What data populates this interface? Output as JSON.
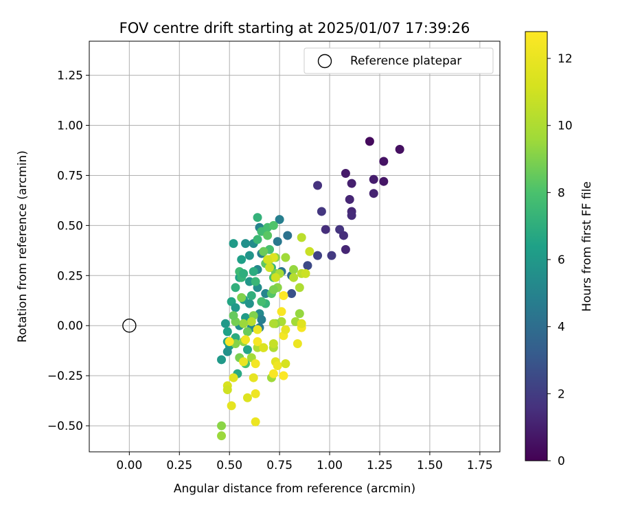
{
  "chart_data": {
    "type": "scatter",
    "title": "FOV centre drift starting at 2025/01/07 17:39:26",
    "xlabel": "Angular distance from reference (arcmin)",
    "ylabel": "Rotation from reference (arcmin)",
    "xlim": [
      -0.2,
      1.85
    ],
    "ylim": [
      -0.63,
      1.42
    ],
    "x_ticks": [
      0.0,
      0.25,
      0.5,
      0.75,
      1.0,
      1.25,
      1.5,
      1.75
    ],
    "x_tick_labels": [
      "0.00",
      "0.25",
      "0.50",
      "0.75",
      "1.00",
      "1.25",
      "1.50",
      "1.75"
    ],
    "y_ticks": [
      -0.5,
      -0.25,
      0.0,
      0.25,
      0.5,
      0.75,
      1.0,
      1.25
    ],
    "y_tick_labels": [
      "−0.50",
      "−0.25",
      "0.00",
      "0.25",
      "0.50",
      "0.75",
      "1.00",
      "1.25"
    ],
    "grid": true,
    "legend": {
      "position": "top-right",
      "entries": [
        "Reference platepar"
      ]
    },
    "reference_point": {
      "x": 0.0,
      "y": 0.0,
      "label": "Reference platepar"
    },
    "colorbar": {
      "label": "Hours from first FF file",
      "colormap": "viridis",
      "range": [
        0,
        12.8
      ],
      "ticks": [
        0,
        2,
        4,
        6,
        8,
        10,
        12
      ],
      "tick_labels": [
        "0",
        "2",
        "4",
        "6",
        "8",
        "10",
        "12"
      ]
    },
    "points": [
      {
        "x": 1.2,
        "y": 0.92,
        "c": 0.3
      },
      {
        "x": 1.35,
        "y": 0.88,
        "c": 0.5
      },
      {
        "x": 1.27,
        "y": 0.82,
        "c": 0.6
      },
      {
        "x": 1.08,
        "y": 0.76,
        "c": 0.8
      },
      {
        "x": 1.22,
        "y": 0.73,
        "c": 0.9
      },
      {
        "x": 1.27,
        "y": 0.72,
        "c": 0.7
      },
      {
        "x": 1.11,
        "y": 0.71,
        "c": 1.0
      },
      {
        "x": 0.94,
        "y": 0.7,
        "c": 1.6
      },
      {
        "x": 1.22,
        "y": 0.66,
        "c": 1.1
      },
      {
        "x": 1.1,
        "y": 0.63,
        "c": 1.2
      },
      {
        "x": 1.11,
        "y": 0.57,
        "c": 1.3
      },
      {
        "x": 0.96,
        "y": 0.57,
        "c": 1.8
      },
      {
        "x": 1.11,
        "y": 0.55,
        "c": 1.4
      },
      {
        "x": 0.98,
        "y": 0.48,
        "c": 1.5
      },
      {
        "x": 1.05,
        "y": 0.48,
        "c": 1.7
      },
      {
        "x": 1.07,
        "y": 0.45,
        "c": 1.5
      },
      {
        "x": 1.08,
        "y": 0.38,
        "c": 1.2
      },
      {
        "x": 0.94,
        "y": 0.35,
        "c": 2.2
      },
      {
        "x": 1.01,
        "y": 0.35,
        "c": 1.9
      },
      {
        "x": 0.89,
        "y": 0.3,
        "c": 2.5
      },
      {
        "x": 0.81,
        "y": 0.16,
        "c": 2.8
      },
      {
        "x": 0.79,
        "y": 0.45,
        "c": 4.2
      },
      {
        "x": 0.74,
        "y": 0.42,
        "c": 4.5
      },
      {
        "x": 0.75,
        "y": 0.53,
        "c": 4.8
      },
      {
        "x": 0.81,
        "y": 0.25,
        "c": 3.9
      },
      {
        "x": 0.76,
        "y": 0.27,
        "c": 4.4
      },
      {
        "x": 0.65,
        "y": 0.49,
        "c": 5.0
      },
      {
        "x": 0.62,
        "y": 0.41,
        "c": 5.4
      },
      {
        "x": 0.66,
        "y": 0.36,
        "c": 4.9
      },
      {
        "x": 0.58,
        "y": 0.41,
        "c": 5.6
      },
      {
        "x": 0.52,
        "y": 0.41,
        "c": 6.1
      },
      {
        "x": 0.6,
        "y": 0.35,
        "c": 5.8
      },
      {
        "x": 0.56,
        "y": 0.33,
        "c": 6.3
      },
      {
        "x": 0.64,
        "y": 0.28,
        "c": 5.2
      },
      {
        "x": 0.6,
        "y": 0.22,
        "c": 5.9
      },
      {
        "x": 0.55,
        "y": 0.24,
        "c": 6.4
      },
      {
        "x": 0.64,
        "y": 0.19,
        "c": 5.5
      },
      {
        "x": 0.68,
        "y": 0.16,
        "c": 5.1
      },
      {
        "x": 0.57,
        "y": 0.13,
        "c": 6.2
      },
      {
        "x": 0.51,
        "y": 0.12,
        "c": 6.6
      },
      {
        "x": 0.53,
        "y": 0.09,
        "c": 6.0
      },
      {
        "x": 0.6,
        "y": 0.11,
        "c": 5.7
      },
      {
        "x": 0.65,
        "y": 0.06,
        "c": 5.3
      },
      {
        "x": 0.58,
        "y": 0.04,
        "c": 6.1
      },
      {
        "x": 0.55,
        "y": 0.0,
        "c": 5.6
      },
      {
        "x": 0.48,
        "y": 0.01,
        "c": 6.0
      },
      {
        "x": 0.61,
        "y": -0.01,
        "c": 5.2
      },
      {
        "x": 0.66,
        "y": 0.03,
        "c": 4.8
      },
      {
        "x": 0.49,
        "y": -0.03,
        "c": 6.4
      },
      {
        "x": 0.53,
        "y": -0.06,
        "c": 6.9
      },
      {
        "x": 0.49,
        "y": -0.08,
        "c": 6.7
      },
      {
        "x": 0.5,
        "y": -0.1,
        "c": 6.3
      },
      {
        "x": 0.49,
        "y": -0.13,
        "c": 5.7
      },
      {
        "x": 0.46,
        "y": -0.17,
        "c": 6.0
      },
      {
        "x": 0.54,
        "y": -0.24,
        "c": 6.8
      },
      {
        "x": 0.59,
        "y": -0.12,
        "c": 6.6
      },
      {
        "x": 0.65,
        "y": -0.01,
        "c": 4.6
      },
      {
        "x": 0.53,
        "y": 0.19,
        "c": 7.1
      },
      {
        "x": 0.56,
        "y": 0.24,
        "c": 7.3
      },
      {
        "x": 0.55,
        "y": 0.27,
        "c": 7.6
      },
      {
        "x": 0.57,
        "y": 0.26,
        "c": 7.0
      },
      {
        "x": 0.62,
        "y": 0.27,
        "c": 6.9
      },
      {
        "x": 0.64,
        "y": 0.43,
        "c": 7.5
      },
      {
        "x": 0.64,
        "y": 0.54,
        "c": 7.2
      },
      {
        "x": 0.66,
        "y": 0.47,
        "c": 7.7
      },
      {
        "x": 0.69,
        "y": 0.49,
        "c": 7.8
      },
      {
        "x": 0.72,
        "y": 0.5,
        "c": 8.1
      },
      {
        "x": 0.69,
        "y": 0.45,
        "c": 8.3
      },
      {
        "x": 0.7,
        "y": 0.38,
        "c": 7.9
      },
      {
        "x": 0.68,
        "y": 0.31,
        "c": 8.4
      },
      {
        "x": 0.71,
        "y": 0.29,
        "c": 7.4
      },
      {
        "x": 0.72,
        "y": 0.24,
        "c": 8.0
      },
      {
        "x": 0.73,
        "y": 0.26,
        "c": 8.7
      },
      {
        "x": 0.71,
        "y": 0.16,
        "c": 8.2
      },
      {
        "x": 0.68,
        "y": 0.11,
        "c": 7.3
      },
      {
        "x": 0.66,
        "y": 0.12,
        "c": 7.8
      },
      {
        "x": 0.61,
        "y": 0.15,
        "c": 7.1
      },
      {
        "x": 0.63,
        "y": 0.22,
        "c": 7.4
      },
      {
        "x": 0.67,
        "y": 0.37,
        "c": 8.6
      },
      {
        "x": 0.73,
        "y": 0.34,
        "c": 9.1
      },
      {
        "x": 0.78,
        "y": 0.34,
        "c": 9.6
      },
      {
        "x": 0.82,
        "y": 0.28,
        "c": 9.4
      },
      {
        "x": 0.86,
        "y": 0.26,
        "c": 10.5
      },
      {
        "x": 0.88,
        "y": 0.26,
        "c": 10.9
      },
      {
        "x": 0.82,
        "y": 0.24,
        "c": 10.2
      },
      {
        "x": 0.85,
        "y": 0.19,
        "c": 10.0
      },
      {
        "x": 0.75,
        "y": 0.26,
        "c": 9.8
      },
      {
        "x": 0.74,
        "y": 0.19,
        "c": 9.2
      },
      {
        "x": 0.72,
        "y": 0.18,
        "c": 8.9
      },
      {
        "x": 0.7,
        "y": 0.33,
        "c": 10.6
      },
      {
        "x": 0.86,
        "y": 0.44,
        "c": 10.4
      },
      {
        "x": 0.9,
        "y": 0.37,
        "c": 10.8
      },
      {
        "x": 0.85,
        "y": 0.06,
        "c": 9.4
      },
      {
        "x": 0.83,
        "y": 0.02,
        "c": 9.7
      },
      {
        "x": 0.76,
        "y": 0.02,
        "c": 9.9
      },
      {
        "x": 0.73,
        "y": 0.01,
        "c": 9.3
      },
      {
        "x": 0.62,
        "y": 0.05,
        "c": 9.0
      },
      {
        "x": 0.61,
        "y": 0.02,
        "c": 10.3
      },
      {
        "x": 0.57,
        "y": 0.01,
        "c": 9.5
      },
      {
        "x": 0.53,
        "y": 0.02,
        "c": 8.8
      },
      {
        "x": 0.56,
        "y": 0.14,
        "c": 9.0
      },
      {
        "x": 0.52,
        "y": 0.05,
        "c": 8.5
      },
      {
        "x": 0.59,
        "y": -0.03,
        "c": 8.6
      },
      {
        "x": 0.57,
        "y": -0.08,
        "c": 9.3
      },
      {
        "x": 0.53,
        "y": -0.09,
        "c": 9.1
      },
      {
        "x": 0.55,
        "y": -0.16,
        "c": 8.9
      },
      {
        "x": 0.58,
        "y": -0.19,
        "c": 8.0
      },
      {
        "x": 0.61,
        "y": -0.16,
        "c": 9.7
      },
      {
        "x": 0.64,
        "y": -0.11,
        "c": 10.1
      },
      {
        "x": 0.67,
        "y": -0.11,
        "c": 10.4
      },
      {
        "x": 0.72,
        "y": -0.11,
        "c": 10.0
      },
      {
        "x": 0.72,
        "y": -0.09,
        "c": 10.7
      },
      {
        "x": 0.71,
        "y": -0.26,
        "c": 9.6
      },
      {
        "x": 0.46,
        "y": -0.5,
        "c": 9.2
      },
      {
        "x": 0.46,
        "y": -0.55,
        "c": 9.5
      },
      {
        "x": 0.49,
        "y": -0.3,
        "c": 11.3
      },
      {
        "x": 0.49,
        "y": -0.32,
        "c": 11.0
      },
      {
        "x": 0.52,
        "y": -0.26,
        "c": 11.6
      },
      {
        "x": 0.51,
        "y": -0.4,
        "c": 11.8
      },
      {
        "x": 0.57,
        "y": -0.18,
        "c": 12.0
      },
      {
        "x": 0.59,
        "y": -0.36,
        "c": 11.5
      },
      {
        "x": 0.62,
        "y": -0.26,
        "c": 11.9
      },
      {
        "x": 0.63,
        "y": -0.34,
        "c": 12.2
      },
      {
        "x": 0.63,
        "y": -0.48,
        "c": 12.1
      },
      {
        "x": 0.63,
        "y": -0.19,
        "c": 12.4
      },
      {
        "x": 0.58,
        "y": -0.07,
        "c": 12.3
      },
      {
        "x": 0.64,
        "y": -0.08,
        "c": 12.5
      },
      {
        "x": 0.64,
        "y": -0.02,
        "c": 12.0
      },
      {
        "x": 0.67,
        "y": -0.11,
        "c": 11.4
      },
      {
        "x": 0.72,
        "y": -0.24,
        "c": 12.6
      },
      {
        "x": 0.73,
        "y": -0.18,
        "c": 11.7
      },
      {
        "x": 0.74,
        "y": -0.2,
        "c": 12.2
      },
      {
        "x": 0.77,
        "y": -0.25,
        "c": 12.7
      },
      {
        "x": 0.78,
        "y": -0.19,
        "c": 11.2
      },
      {
        "x": 0.77,
        "y": -0.05,
        "c": 12.4
      },
      {
        "x": 0.78,
        "y": -0.02,
        "c": 11.9
      },
      {
        "x": 0.76,
        "y": 0.07,
        "c": 12.6
      },
      {
        "x": 0.77,
        "y": 0.15,
        "c": 12.8
      },
      {
        "x": 0.84,
        "y": -0.09,
        "c": 12.1
      },
      {
        "x": 0.86,
        "y": -0.01,
        "c": 12.5
      },
      {
        "x": 0.72,
        "y": 0.34,
        "c": 11.5
      },
      {
        "x": 0.7,
        "y": 0.29,
        "c": 10.9
      },
      {
        "x": 0.69,
        "y": 0.33,
        "c": 11.1
      },
      {
        "x": 0.5,
        "y": -0.08,
        "c": 12.7
      },
      {
        "x": 0.73,
        "y": 0.24,
        "c": 11.0
      },
      {
        "x": 0.72,
        "y": 0.01,
        "c": 10.0
      },
      {
        "x": 0.86,
        "y": 0.01,
        "c": 11.6
      }
    ]
  }
}
